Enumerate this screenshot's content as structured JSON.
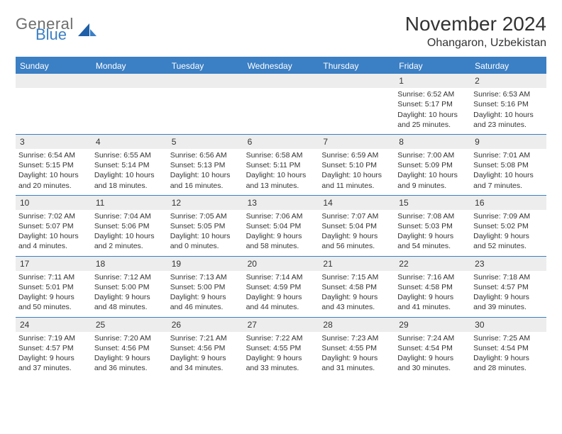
{
  "brand": {
    "line1": "General",
    "line2": "Blue"
  },
  "title": "November 2024",
  "location": "Ohangaron, Uzbekistan",
  "colors": {
    "header_bg": "#3b7fc4",
    "header_text": "#ffffff",
    "band_bg": "#ededed",
    "body_text": "#333333",
    "page_bg": "#ffffff",
    "rule": "#3b7fc4"
  },
  "weekdays": [
    "Sunday",
    "Monday",
    "Tuesday",
    "Wednesday",
    "Thursday",
    "Friday",
    "Saturday"
  ],
  "weeks": [
    [
      {
        "day": "",
        "sunrise": "",
        "sunset": "",
        "daylight": ""
      },
      {
        "day": "",
        "sunrise": "",
        "sunset": "",
        "daylight": ""
      },
      {
        "day": "",
        "sunrise": "",
        "sunset": "",
        "daylight": ""
      },
      {
        "day": "",
        "sunrise": "",
        "sunset": "",
        "daylight": ""
      },
      {
        "day": "",
        "sunrise": "",
        "sunset": "",
        "daylight": ""
      },
      {
        "day": "1",
        "sunrise": "Sunrise: 6:52 AM",
        "sunset": "Sunset: 5:17 PM",
        "daylight": "Daylight: 10 hours and 25 minutes."
      },
      {
        "day": "2",
        "sunrise": "Sunrise: 6:53 AM",
        "sunset": "Sunset: 5:16 PM",
        "daylight": "Daylight: 10 hours and 23 minutes."
      }
    ],
    [
      {
        "day": "3",
        "sunrise": "Sunrise: 6:54 AM",
        "sunset": "Sunset: 5:15 PM",
        "daylight": "Daylight: 10 hours and 20 minutes."
      },
      {
        "day": "4",
        "sunrise": "Sunrise: 6:55 AM",
        "sunset": "Sunset: 5:14 PM",
        "daylight": "Daylight: 10 hours and 18 minutes."
      },
      {
        "day": "5",
        "sunrise": "Sunrise: 6:56 AM",
        "sunset": "Sunset: 5:13 PM",
        "daylight": "Daylight: 10 hours and 16 minutes."
      },
      {
        "day": "6",
        "sunrise": "Sunrise: 6:58 AM",
        "sunset": "Sunset: 5:11 PM",
        "daylight": "Daylight: 10 hours and 13 minutes."
      },
      {
        "day": "7",
        "sunrise": "Sunrise: 6:59 AM",
        "sunset": "Sunset: 5:10 PM",
        "daylight": "Daylight: 10 hours and 11 minutes."
      },
      {
        "day": "8",
        "sunrise": "Sunrise: 7:00 AM",
        "sunset": "Sunset: 5:09 PM",
        "daylight": "Daylight: 10 hours and 9 minutes."
      },
      {
        "day": "9",
        "sunrise": "Sunrise: 7:01 AM",
        "sunset": "Sunset: 5:08 PM",
        "daylight": "Daylight: 10 hours and 7 minutes."
      }
    ],
    [
      {
        "day": "10",
        "sunrise": "Sunrise: 7:02 AM",
        "sunset": "Sunset: 5:07 PM",
        "daylight": "Daylight: 10 hours and 4 minutes."
      },
      {
        "day": "11",
        "sunrise": "Sunrise: 7:04 AM",
        "sunset": "Sunset: 5:06 PM",
        "daylight": "Daylight: 10 hours and 2 minutes."
      },
      {
        "day": "12",
        "sunrise": "Sunrise: 7:05 AM",
        "sunset": "Sunset: 5:05 PM",
        "daylight": "Daylight: 10 hours and 0 minutes."
      },
      {
        "day": "13",
        "sunrise": "Sunrise: 7:06 AM",
        "sunset": "Sunset: 5:04 PM",
        "daylight": "Daylight: 9 hours and 58 minutes."
      },
      {
        "day": "14",
        "sunrise": "Sunrise: 7:07 AM",
        "sunset": "Sunset: 5:04 PM",
        "daylight": "Daylight: 9 hours and 56 minutes."
      },
      {
        "day": "15",
        "sunrise": "Sunrise: 7:08 AM",
        "sunset": "Sunset: 5:03 PM",
        "daylight": "Daylight: 9 hours and 54 minutes."
      },
      {
        "day": "16",
        "sunrise": "Sunrise: 7:09 AM",
        "sunset": "Sunset: 5:02 PM",
        "daylight": "Daylight: 9 hours and 52 minutes."
      }
    ],
    [
      {
        "day": "17",
        "sunrise": "Sunrise: 7:11 AM",
        "sunset": "Sunset: 5:01 PM",
        "daylight": "Daylight: 9 hours and 50 minutes."
      },
      {
        "day": "18",
        "sunrise": "Sunrise: 7:12 AM",
        "sunset": "Sunset: 5:00 PM",
        "daylight": "Daylight: 9 hours and 48 minutes."
      },
      {
        "day": "19",
        "sunrise": "Sunrise: 7:13 AM",
        "sunset": "Sunset: 5:00 PM",
        "daylight": "Daylight: 9 hours and 46 minutes."
      },
      {
        "day": "20",
        "sunrise": "Sunrise: 7:14 AM",
        "sunset": "Sunset: 4:59 PM",
        "daylight": "Daylight: 9 hours and 44 minutes."
      },
      {
        "day": "21",
        "sunrise": "Sunrise: 7:15 AM",
        "sunset": "Sunset: 4:58 PM",
        "daylight": "Daylight: 9 hours and 43 minutes."
      },
      {
        "day": "22",
        "sunrise": "Sunrise: 7:16 AM",
        "sunset": "Sunset: 4:58 PM",
        "daylight": "Daylight: 9 hours and 41 minutes."
      },
      {
        "day": "23",
        "sunrise": "Sunrise: 7:18 AM",
        "sunset": "Sunset: 4:57 PM",
        "daylight": "Daylight: 9 hours and 39 minutes."
      }
    ],
    [
      {
        "day": "24",
        "sunrise": "Sunrise: 7:19 AM",
        "sunset": "Sunset: 4:57 PM",
        "daylight": "Daylight: 9 hours and 37 minutes."
      },
      {
        "day": "25",
        "sunrise": "Sunrise: 7:20 AM",
        "sunset": "Sunset: 4:56 PM",
        "daylight": "Daylight: 9 hours and 36 minutes."
      },
      {
        "day": "26",
        "sunrise": "Sunrise: 7:21 AM",
        "sunset": "Sunset: 4:56 PM",
        "daylight": "Daylight: 9 hours and 34 minutes."
      },
      {
        "day": "27",
        "sunrise": "Sunrise: 7:22 AM",
        "sunset": "Sunset: 4:55 PM",
        "daylight": "Daylight: 9 hours and 33 minutes."
      },
      {
        "day": "28",
        "sunrise": "Sunrise: 7:23 AM",
        "sunset": "Sunset: 4:55 PM",
        "daylight": "Daylight: 9 hours and 31 minutes."
      },
      {
        "day": "29",
        "sunrise": "Sunrise: 7:24 AM",
        "sunset": "Sunset: 4:54 PM",
        "daylight": "Daylight: 9 hours and 30 minutes."
      },
      {
        "day": "30",
        "sunrise": "Sunrise: 7:25 AM",
        "sunset": "Sunset: 4:54 PM",
        "daylight": "Daylight: 9 hours and 28 minutes."
      }
    ]
  ]
}
